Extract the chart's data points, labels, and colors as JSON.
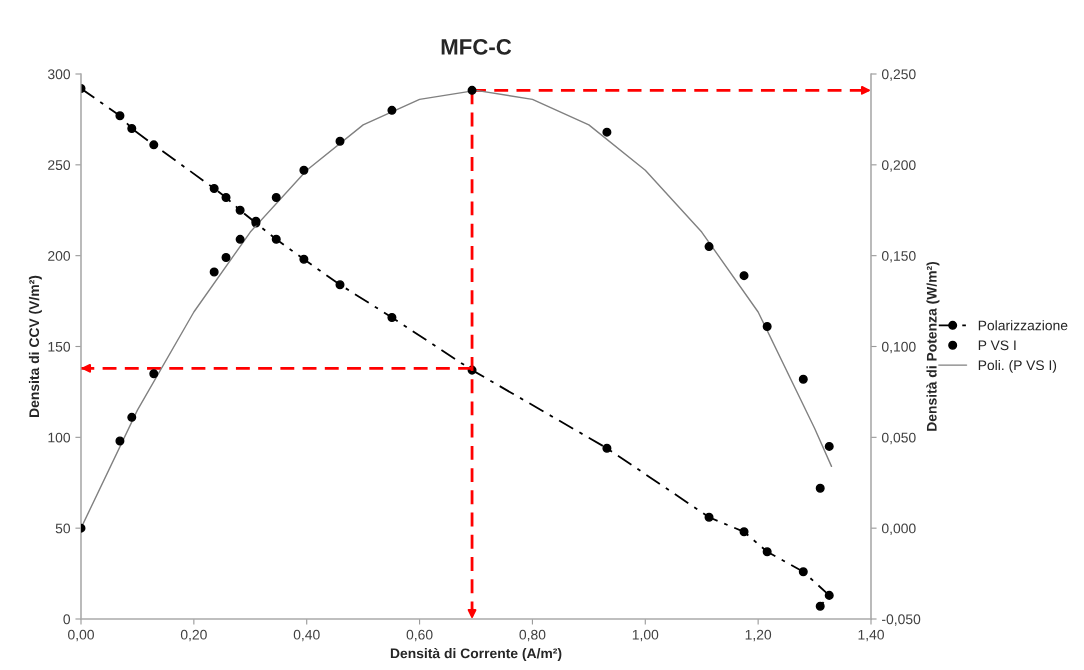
{
  "chart_data": {
    "type": "line",
    "title": "MFC-C",
    "xlabel": "Densità di Corrente (A/m²)",
    "ylabel": "Densita di CCV (V/m²)",
    "y2label": "Densità di Potenza (W/m²)",
    "series": [
      {
        "name": "Polarizzazione",
        "type": "line",
        "color": "#000000",
        "marker": "circle",
        "line_style": "dashed",
        "x": [
          0.0,
          0.069,
          0.09,
          0.129,
          0.236,
          0.257,
          0.282,
          0.31,
          0.346,
          0.395,
          0.459,
          0.551,
          0.693,
          0.932,
          1.113,
          1.175,
          1.216,
          1.28,
          1.326,
          1.31
        ],
        "values": [
          292,
          277,
          270,
          261,
          237,
          232,
          225,
          218,
          209,
          198,
          184,
          166,
          137,
          94,
          56,
          48,
          37,
          26,
          13,
          7
        ]
      },
      {
        "name": "P VS I",
        "type": "scatter",
        "axis": "y2",
        "color": "#000000",
        "marker": "circle",
        "x": [
          0.0,
          0.069,
          0.09,
          0.129,
          0.236,
          0.257,
          0.282,
          0.31,
          0.346,
          0.395,
          0.459,
          0.551,
          0.693,
          0.932,
          1.113,
          1.175,
          1.216,
          1.28,
          1.31,
          1.326
        ],
        "values": [
          0.0,
          0.048,
          0.061,
          0.085,
          0.141,
          0.149,
          0.159,
          0.169,
          0.182,
          0.197,
          0.213,
          0.23,
          0.241,
          0.218,
          0.155,
          0.139,
          0.111,
          0.082,
          0.022,
          0.045
        ]
      },
      {
        "name": "Poli. (P VS I)",
        "type": "line",
        "axis": "y2",
        "color": "#808080",
        "marker": "none",
        "line_style": "solid",
        "x": [
          0.0,
          0.1,
          0.2,
          0.3,
          0.4,
          0.5,
          0.6,
          0.7,
          0.8,
          0.9,
          1.0,
          1.1,
          1.2,
          1.3,
          1.33
        ],
        "values": [
          0.0,
          0.065,
          0.119,
          0.163,
          0.197,
          0.222,
          0.236,
          0.241,
          0.236,
          0.222,
          0.197,
          0.163,
          0.119,
          0.055,
          0.034
        ]
      }
    ],
    "ref_lines": [
      {
        "axis": "x",
        "value": 0.693,
        "color": "#ff0000",
        "line_style": "dashed"
      },
      {
        "axis": "y",
        "value": 138,
        "color": "#ff0000",
        "line_style": "dashed"
      },
      {
        "axis": "y2",
        "value": 0.241,
        "color": "#ff0000",
        "line_style": "dashed"
      }
    ],
    "xlim": [
      0,
      1.4
    ],
    "xticks": [
      {
        "value": 0,
        "label": "0,00"
      },
      {
        "value": 0.2,
        "label": "0,20"
      },
      {
        "value": 0.4,
        "label": "0,40"
      },
      {
        "value": 0.6,
        "label": "0,60"
      },
      {
        "value": 0.8,
        "label": "0,80"
      },
      {
        "value": 1.0,
        "label": "1,00"
      },
      {
        "value": 1.2,
        "label": "1,20"
      },
      {
        "value": 1.4,
        "label": "1,40"
      }
    ],
    "ylim": [
      0,
      300
    ],
    "yticks": [
      0,
      50,
      100,
      150,
      200,
      250,
      300
    ],
    "y2lim": [
      -0.05,
      0.25
    ],
    "y2ticks": [
      {
        "value": -0.05,
        "label": "-0,050"
      },
      {
        "value": 0.0,
        "label": "0,000"
      },
      {
        "value": 0.05,
        "label": "0,050"
      },
      {
        "value": 0.1,
        "label": "0,100"
      },
      {
        "value": 0.15,
        "label": "0,150"
      },
      {
        "value": 0.2,
        "label": "0,200"
      },
      {
        "value": 0.25,
        "label": "0,250"
      }
    ],
    "grid": false,
    "legend": "right"
  }
}
